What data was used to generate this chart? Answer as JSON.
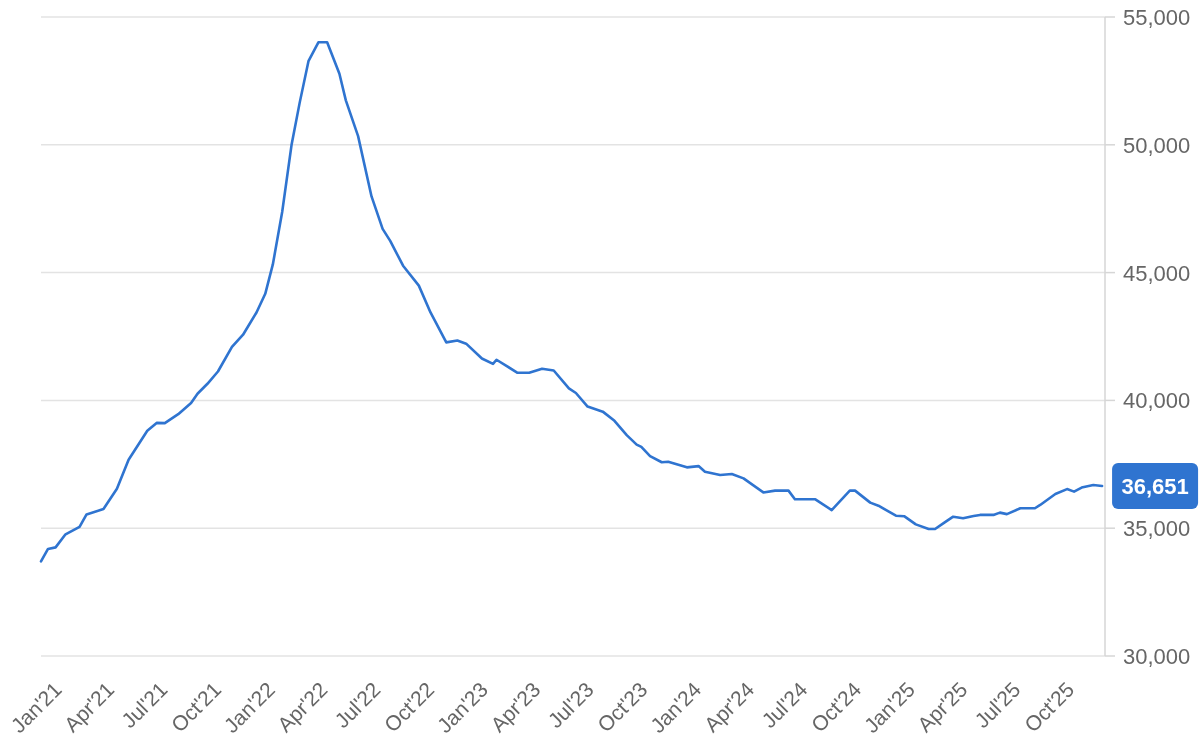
{
  "chart_data": {
    "type": "line",
    "color": "#2f74d0",
    "x": [
      "2021-01-01",
      "2021-01-13",
      "2021-01-26",
      "2021-02-12",
      "2021-03-08",
      "2021-03-20",
      "2021-04-18",
      "2021-05-11",
      "2021-05-31",
      "2021-07-02",
      "2021-07-18",
      "2021-08-01",
      "2021-08-24",
      "2021-09-15",
      "2021-09-26",
      "2021-10-13",
      "2021-10-31",
      "2021-11-24",
      "2021-12-13",
      "2022-01-05",
      "2022-01-20",
      "2022-02-02",
      "2022-02-18",
      "2022-03-06",
      "2022-03-20",
      "2022-04-04",
      "2022-04-21",
      "2022-05-06",
      "2022-05-27",
      "2022-06-07",
      "2022-06-28",
      "2022-07-21",
      "2022-08-09",
      "2022-08-22",
      "2022-09-13",
      "2022-10-10",
      "2022-10-30",
      "2022-11-26",
      "2022-12-15",
      "2022-12-30",
      "2023-01-26",
      "2023-02-14",
      "2023-02-20",
      "2023-03-09",
      "2023-03-28",
      "2023-04-17",
      "2023-05-09",
      "2023-05-29",
      "2023-06-24",
      "2023-07-06",
      "2023-07-26",
      "2023-08-21",
      "2023-09-10",
      "2023-10-01",
      "2023-10-18",
      "2023-10-26",
      "2023-11-10",
      "2023-11-30",
      "2023-12-11",
      "2024-01-12",
      "2024-02-01",
      "2024-02-12",
      "2024-03-09",
      "2024-03-29",
      "2024-04-18",
      "2024-05-22",
      "2024-06-11",
      "2024-07-04",
      "2024-07-15",
      "2024-08-19",
      "2024-09-16",
      "2024-10-17",
      "2024-10-26",
      "2024-11-21",
      "2024-12-05",
      "2025-01-04",
      "2025-01-18",
      "2025-02-07",
      "2025-03-01",
      "2025-03-12",
      "2025-03-26",
      "2025-04-12",
      "2025-04-29",
      "2025-05-17",
      "2025-05-28",
      "2025-06-20",
      "2025-07-01",
      "2025-07-13",
      "2025-08-05",
      "2025-08-30",
      "2025-09-08",
      "2025-10-04",
      "2025-10-24",
      "2025-11-05",
      "2025-11-18",
      "2025-12-08",
      "2025-12-23"
    ],
    "values": [
      33700,
      34190,
      34250,
      34760,
      35050,
      35540,
      35750,
      36540,
      37680,
      38810,
      39120,
      39110,
      39460,
      39900,
      40260,
      40650,
      41130,
      42090,
      42570,
      43440,
      44170,
      45320,
      47370,
      49990,
      51650,
      53270,
      54010,
      54010,
      52780,
      51740,
      50340,
      47980,
      46710,
      46240,
      45270,
      44490,
      43440,
      42270,
      42340,
      42220,
      41640,
      41430,
      41590,
      41350,
      41080,
      41080,
      41240,
      41170,
      40470,
      40290,
      39760,
      39560,
      39200,
      38640,
      38270,
      38180,
      37820,
      37580,
      37600,
      37380,
      37430,
      37210,
      37080,
      37120,
      36950,
      36400,
      36470,
      36470,
      36130,
      36130,
      35710,
      36470,
      36470,
      36000,
      35880,
      35490,
      35470,
      35150,
      34970,
      34970,
      35190,
      35450,
      35390,
      35480,
      35520,
      35520,
      35610,
      35550,
      35780,
      35780,
      35910,
      36340,
      36530,
      36430,
      36590,
      36690,
      36651
    ],
    "value_labels": [
      null,
      null,
      null,
      null,
      null,
      null,
      null,
      null,
      null,
      null,
      null,
      null,
      null,
      null,
      null,
      null,
      null,
      null,
      null,
      null,
      null,
      null,
      null,
      null,
      null,
      null,
      null,
      null,
      null,
      null,
      null,
      null,
      null,
      null,
      null,
      null,
      null,
      null,
      null,
      null,
      null,
      null,
      null,
      null,
      null,
      null,
      null,
      null,
      null,
      null,
      null,
      null,
      null,
      null,
      null,
      null,
      null,
      null,
      null,
      null,
      null,
      null,
      null,
      null,
      null,
      null,
      null,
      null,
      null,
      null,
      null,
      null,
      null,
      null,
      null,
      null,
      null,
      null,
      null,
      null,
      null,
      null,
      null,
      null,
      null,
      null,
      null,
      null,
      null,
      null,
      null,
      null,
      null,
      null,
      null,
      null,
      "36,651"
    ],
    "xlim": [
      "2021-01-01",
      "2025-12-28"
    ],
    "xticks": [
      {
        "value": "2021-01-01",
        "label": "Jan'21"
      },
      {
        "value": "2021-04-01",
        "label": "Apr'21"
      },
      {
        "value": "2021-07-01",
        "label": "Jul'21"
      },
      {
        "value": "2021-10-01",
        "label": "Oct'21"
      },
      {
        "value": "2022-01-01",
        "label": "Jan'22"
      },
      {
        "value": "2022-04-01",
        "label": "Apr'22"
      },
      {
        "value": "2022-07-01",
        "label": "Jul'22"
      },
      {
        "value": "2022-10-01",
        "label": "Oct'22"
      },
      {
        "value": "2023-01-01",
        "label": "Jan'23"
      },
      {
        "value": "2023-04-01",
        "label": "Apr'23"
      },
      {
        "value": "2023-07-01",
        "label": "Jul'23"
      },
      {
        "value": "2023-10-01",
        "label": "Oct'23"
      },
      {
        "value": "2024-01-01",
        "label": "Jan'24"
      },
      {
        "value": "2024-04-01",
        "label": "Apr'24"
      },
      {
        "value": "2024-07-01",
        "label": "Jul'24"
      },
      {
        "value": "2024-10-01",
        "label": "Oct'24"
      },
      {
        "value": "2025-01-01",
        "label": "Jan'25"
      },
      {
        "value": "2025-04-01",
        "label": "Apr'25"
      },
      {
        "value": "2025-07-01",
        "label": "Jul'25"
      },
      {
        "value": "2025-10-01",
        "label": "Oct'25"
      }
    ],
    "ylim": [
      30000,
      55000
    ],
    "yticks": [
      {
        "value": 30000,
        "label": "30,000"
      },
      {
        "value": 35000,
        "label": "35,000"
      },
      {
        "value": 40000,
        "label": "40,000"
      },
      {
        "value": 45000,
        "label": "45,000"
      },
      {
        "value": 50000,
        "label": "50,000"
      },
      {
        "value": 55000,
        "label": "55,000"
      }
    ],
    "grid": "y"
  }
}
